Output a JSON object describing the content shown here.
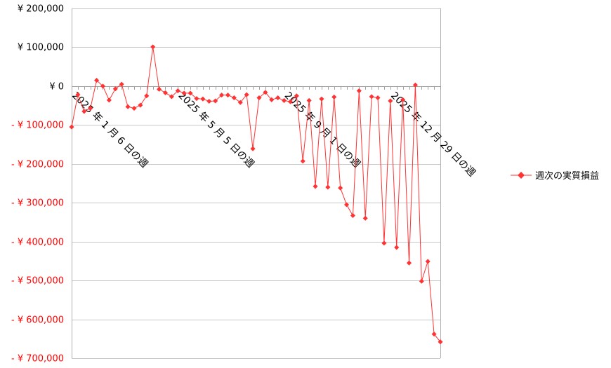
{
  "chart_data": {
    "type": "line",
    "title": "",
    "xlabel": "",
    "ylabel": "",
    "ylim": [
      -700000,
      200000
    ],
    "y_tick_values": [
      200000,
      100000,
      0,
      -100000,
      -200000,
      -300000,
      -400000,
      -500000,
      -600000,
      -700000
    ],
    "y_tick_labels": [
      "¥ 200,000",
      "¥ 100,000",
      "¥ 0",
      "- ¥ 100,000",
      "- ¥ 200,000",
      "- ¥ 300,000",
      "- ¥ 400,000",
      "- ¥ 500,000",
      "- ¥ 600,000",
      "- ¥ 700,000"
    ],
    "x_tick_labels": [
      "2025 年 1 月 6 日の週",
      "2025 年 5 月 5 日の週",
      "2025 年 9 月 1 日の週",
      "2025 年 12 月 29 日の週"
    ],
    "x_tick_indices": [
      0,
      17,
      34,
      51
    ],
    "grid": true,
    "legend_position": "right",
    "colors": {
      "series": "#ff3333",
      "negative_label": "#ff0000",
      "positive_label": "#000000",
      "grid": "#c8c8c8",
      "axis": "#b0b0b0"
    },
    "series": [
      {
        "name": "週次の実質損益",
        "values": [
          -105000,
          -22000,
          -65000,
          -57000,
          15000,
          0,
          -36000,
          -7000,
          5000,
          -53000,
          -57000,
          -49000,
          -25000,
          101000,
          -8000,
          -17000,
          -27000,
          -12000,
          -18000,
          -18000,
          -32000,
          -33000,
          -39000,
          -38000,
          -23000,
          -23000,
          -30000,
          -42000,
          -22000,
          -161000,
          -30000,
          -16000,
          -35000,
          -30000,
          -37000,
          -40000,
          -25000,
          -193000,
          -37000,
          -258000,
          -33000,
          -260000,
          -28000,
          -262000,
          -305000,
          -333000,
          -12000,
          -340000,
          -27000,
          -30000,
          -404000,
          -38000,
          -415000,
          -35000,
          -455000,
          3000,
          -502000,
          -451000,
          -638000,
          -658000
        ]
      }
    ]
  }
}
